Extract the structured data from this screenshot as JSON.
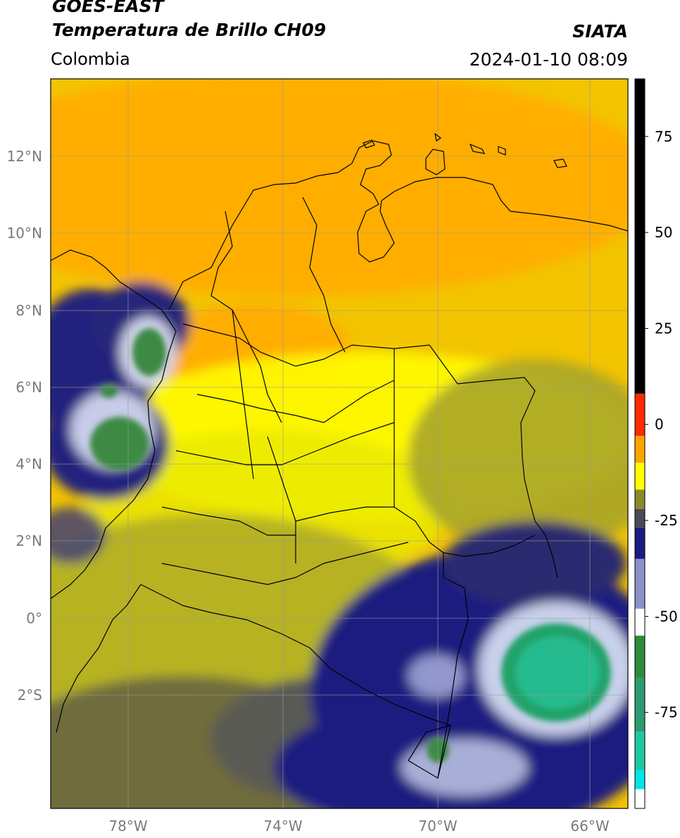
{
  "header": {
    "satellite": "GOES-EAST",
    "product": "Temperatura de Brillo CH09",
    "region": "Colombia",
    "agency": "SIATA",
    "timestamp": "2024-01-10 08:09"
  },
  "map": {
    "lat_labels": [
      "12°N",
      "10°N",
      "8°N",
      "6°N",
      "4°N",
      "2°N",
      "0°",
      "2°S"
    ],
    "lon_labels": [
      "78°W",
      "74°W",
      "70°W",
      "66°W"
    ],
    "extent": {
      "lon_min": -80,
      "lon_max": -65,
      "lat_min": -5,
      "lat_max": 14
    }
  },
  "colorbar": {
    "tick_labels": [
      "75",
      "50",
      "25",
      "0",
      "-25",
      "-50",
      "-75"
    ],
    "tick_values": [
      75,
      50,
      25,
      0,
      -25,
      -50,
      -75
    ],
    "range": [
      -100,
      90
    ],
    "colors": {
      "black": "#000000",
      "red": "#ff2a00",
      "orange": "#ffa500",
      "yellow": "#ffff00",
      "olive": "#8a8a2a",
      "gray": "#4a4a5a",
      "navy": "#1a1a80",
      "white": "#ffffff",
      "green": "#2e8b3a",
      "teal": "#1fc8a0",
      "cyan": "#00e5e5"
    }
  }
}
